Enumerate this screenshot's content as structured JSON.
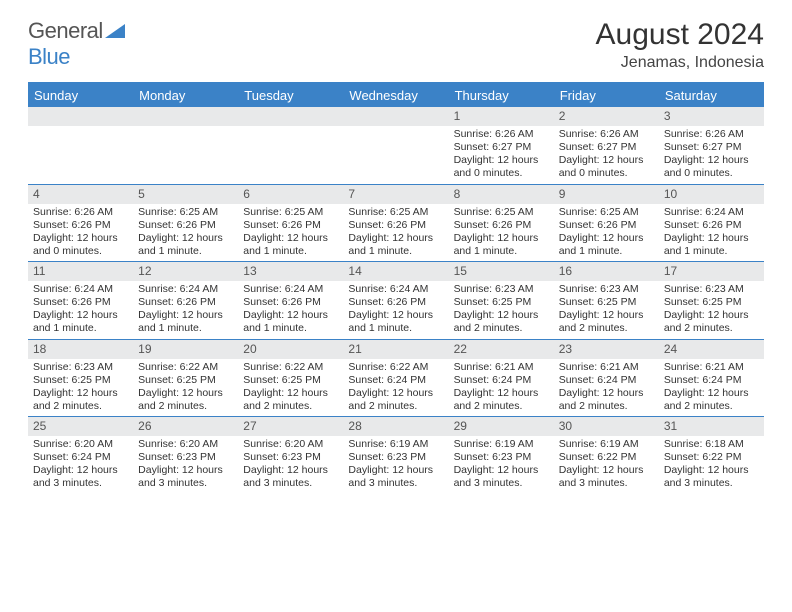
{
  "logo": {
    "text1": "General",
    "text2": "Blue"
  },
  "title": "August 2024",
  "location": "Jenamas, Indonesia",
  "colors": {
    "accent": "#3b82c7",
    "band": "#e8e9ea",
    "text": "#333333",
    "bg": "#ffffff"
  },
  "day_names": [
    "Sunday",
    "Monday",
    "Tuesday",
    "Wednesday",
    "Thursday",
    "Friday",
    "Saturday"
  ],
  "weeks": [
    [
      {
        "n": "",
        "sr": "",
        "ss": "",
        "dl": ""
      },
      {
        "n": "",
        "sr": "",
        "ss": "",
        "dl": ""
      },
      {
        "n": "",
        "sr": "",
        "ss": "",
        "dl": ""
      },
      {
        "n": "",
        "sr": "",
        "ss": "",
        "dl": ""
      },
      {
        "n": "1",
        "sr": "Sunrise: 6:26 AM",
        "ss": "Sunset: 6:27 PM",
        "dl": "Daylight: 12 hours and 0 minutes."
      },
      {
        "n": "2",
        "sr": "Sunrise: 6:26 AM",
        "ss": "Sunset: 6:27 PM",
        "dl": "Daylight: 12 hours and 0 minutes."
      },
      {
        "n": "3",
        "sr": "Sunrise: 6:26 AM",
        "ss": "Sunset: 6:27 PM",
        "dl": "Daylight: 12 hours and 0 minutes."
      }
    ],
    [
      {
        "n": "4",
        "sr": "Sunrise: 6:26 AM",
        "ss": "Sunset: 6:26 PM",
        "dl": "Daylight: 12 hours and 0 minutes."
      },
      {
        "n": "5",
        "sr": "Sunrise: 6:25 AM",
        "ss": "Sunset: 6:26 PM",
        "dl": "Daylight: 12 hours and 1 minute."
      },
      {
        "n": "6",
        "sr": "Sunrise: 6:25 AM",
        "ss": "Sunset: 6:26 PM",
        "dl": "Daylight: 12 hours and 1 minute."
      },
      {
        "n": "7",
        "sr": "Sunrise: 6:25 AM",
        "ss": "Sunset: 6:26 PM",
        "dl": "Daylight: 12 hours and 1 minute."
      },
      {
        "n": "8",
        "sr": "Sunrise: 6:25 AM",
        "ss": "Sunset: 6:26 PM",
        "dl": "Daylight: 12 hours and 1 minute."
      },
      {
        "n": "9",
        "sr": "Sunrise: 6:25 AM",
        "ss": "Sunset: 6:26 PM",
        "dl": "Daylight: 12 hours and 1 minute."
      },
      {
        "n": "10",
        "sr": "Sunrise: 6:24 AM",
        "ss": "Sunset: 6:26 PM",
        "dl": "Daylight: 12 hours and 1 minute."
      }
    ],
    [
      {
        "n": "11",
        "sr": "Sunrise: 6:24 AM",
        "ss": "Sunset: 6:26 PM",
        "dl": "Daylight: 12 hours and 1 minute."
      },
      {
        "n": "12",
        "sr": "Sunrise: 6:24 AM",
        "ss": "Sunset: 6:26 PM",
        "dl": "Daylight: 12 hours and 1 minute."
      },
      {
        "n": "13",
        "sr": "Sunrise: 6:24 AM",
        "ss": "Sunset: 6:26 PM",
        "dl": "Daylight: 12 hours and 1 minute."
      },
      {
        "n": "14",
        "sr": "Sunrise: 6:24 AM",
        "ss": "Sunset: 6:26 PM",
        "dl": "Daylight: 12 hours and 1 minute."
      },
      {
        "n": "15",
        "sr": "Sunrise: 6:23 AM",
        "ss": "Sunset: 6:25 PM",
        "dl": "Daylight: 12 hours and 2 minutes."
      },
      {
        "n": "16",
        "sr": "Sunrise: 6:23 AM",
        "ss": "Sunset: 6:25 PM",
        "dl": "Daylight: 12 hours and 2 minutes."
      },
      {
        "n": "17",
        "sr": "Sunrise: 6:23 AM",
        "ss": "Sunset: 6:25 PM",
        "dl": "Daylight: 12 hours and 2 minutes."
      }
    ],
    [
      {
        "n": "18",
        "sr": "Sunrise: 6:23 AM",
        "ss": "Sunset: 6:25 PM",
        "dl": "Daylight: 12 hours and 2 minutes."
      },
      {
        "n": "19",
        "sr": "Sunrise: 6:22 AM",
        "ss": "Sunset: 6:25 PM",
        "dl": "Daylight: 12 hours and 2 minutes."
      },
      {
        "n": "20",
        "sr": "Sunrise: 6:22 AM",
        "ss": "Sunset: 6:25 PM",
        "dl": "Daylight: 12 hours and 2 minutes."
      },
      {
        "n": "21",
        "sr": "Sunrise: 6:22 AM",
        "ss": "Sunset: 6:24 PM",
        "dl": "Daylight: 12 hours and 2 minutes."
      },
      {
        "n": "22",
        "sr": "Sunrise: 6:21 AM",
        "ss": "Sunset: 6:24 PM",
        "dl": "Daylight: 12 hours and 2 minutes."
      },
      {
        "n": "23",
        "sr": "Sunrise: 6:21 AM",
        "ss": "Sunset: 6:24 PM",
        "dl": "Daylight: 12 hours and 2 minutes."
      },
      {
        "n": "24",
        "sr": "Sunrise: 6:21 AM",
        "ss": "Sunset: 6:24 PM",
        "dl": "Daylight: 12 hours and 2 minutes."
      }
    ],
    [
      {
        "n": "25",
        "sr": "Sunrise: 6:20 AM",
        "ss": "Sunset: 6:24 PM",
        "dl": "Daylight: 12 hours and 3 minutes."
      },
      {
        "n": "26",
        "sr": "Sunrise: 6:20 AM",
        "ss": "Sunset: 6:23 PM",
        "dl": "Daylight: 12 hours and 3 minutes."
      },
      {
        "n": "27",
        "sr": "Sunrise: 6:20 AM",
        "ss": "Sunset: 6:23 PM",
        "dl": "Daylight: 12 hours and 3 minutes."
      },
      {
        "n": "28",
        "sr": "Sunrise: 6:19 AM",
        "ss": "Sunset: 6:23 PM",
        "dl": "Daylight: 12 hours and 3 minutes."
      },
      {
        "n": "29",
        "sr": "Sunrise: 6:19 AM",
        "ss": "Sunset: 6:23 PM",
        "dl": "Daylight: 12 hours and 3 minutes."
      },
      {
        "n": "30",
        "sr": "Sunrise: 6:19 AM",
        "ss": "Sunset: 6:22 PM",
        "dl": "Daylight: 12 hours and 3 minutes."
      },
      {
        "n": "31",
        "sr": "Sunrise: 6:18 AM",
        "ss": "Sunset: 6:22 PM",
        "dl": "Daylight: 12 hours and 3 minutes."
      }
    ]
  ]
}
